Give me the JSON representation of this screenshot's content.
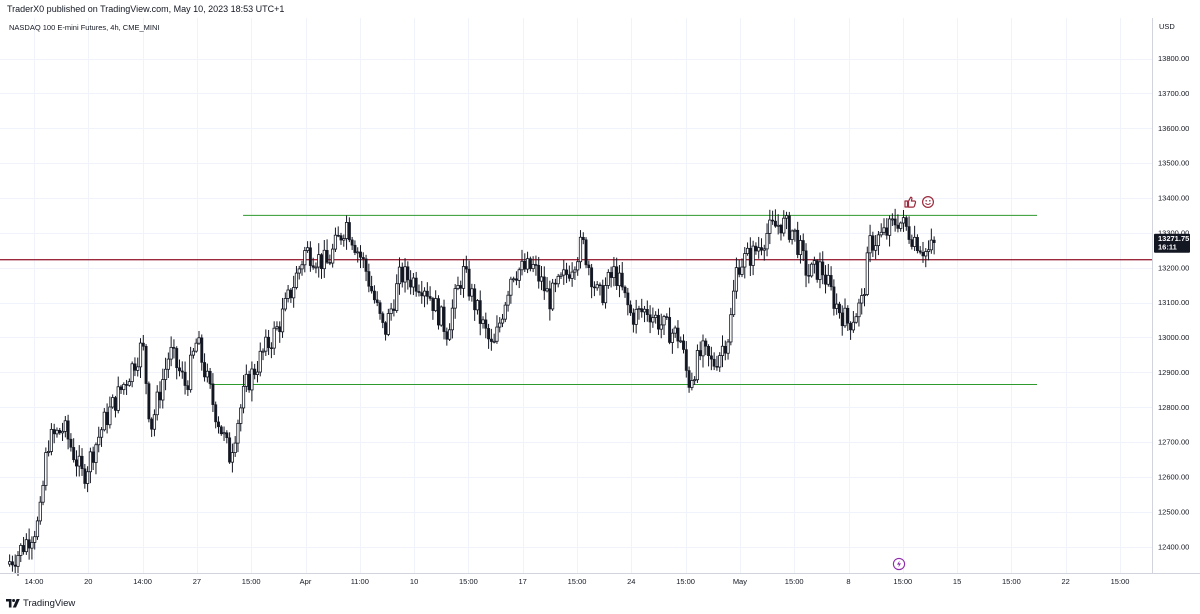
{
  "header": {
    "published": "TraderX0 published on TradingView.com, May 10, 2023 18:53 UTC+1"
  },
  "legend": {
    "symbol_line": "NASDAQ 100 E-mini Futures, 4h, CME_MINI"
  },
  "footer": {
    "brand": "TradingView"
  },
  "colors": {
    "background": "#ffffff",
    "candle": "#131722",
    "support_resistance": "#2e9a2e",
    "pivot_line": "#9c2a3c",
    "price_badge_bg": "#131722",
    "price_badge_text": "#ffffff",
    "grid": "#f0f3fa",
    "axis_border": "#d1d4dc",
    "icon_accent": "#9c2a3c",
    "alert_icon": "#8e2bab"
  },
  "icons": [
    "thumbs-up-icon",
    "smiley-icon",
    "lightning-icon",
    "tradingview-logo-icon"
  ],
  "chart_data": {
    "type": "candlestick",
    "title": "NASDAQ 100 E-mini Futures, 4h, CME_MINI",
    "price_axis_unit": "USD",
    "y_range": [
      12340,
      13880
    ],
    "y_ticks": [
      "13800.00",
      "13700.00",
      "13600.00",
      "13500.00",
      "13400.00",
      "13300.00",
      "13200.00",
      "13100.00",
      "13000.00",
      "12900.00",
      "12800.00",
      "12700.00",
      "12600.00",
      "12500.00",
      "12400.00"
    ],
    "y_tick_values": [
      13800,
      13700,
      13600,
      13500,
      13400,
      13300,
      13200,
      13100,
      13000,
      12900,
      12800,
      12700,
      12600,
      12500,
      12400
    ],
    "x_ticks": [
      "14:00",
      "20",
      "14:00",
      "27",
      "15:00",
      "Apr",
      "11:00",
      "10",
      "15:00",
      "17",
      "15:00",
      "24",
      "15:00",
      "May",
      "15:00",
      "8",
      "15:00",
      "15",
      "15:00",
      "22",
      "15:00"
    ],
    "x_tick_positions": [
      0.0,
      1.0,
      2.0,
      3.0,
      4.0,
      5.0,
      6.0,
      7.0,
      8.0,
      9.0,
      10.0,
      11.0,
      12.0,
      13.0,
      14.0,
      15.0,
      16.0,
      17.0,
      18.0,
      19.0,
      20.0
    ],
    "current_price": "13271.75",
    "countdown": "16:11",
    "current_price_value": 13271.75,
    "horizontal_lines": [
      {
        "name": "resistance",
        "price": 13350,
        "color": "#2e9a2e",
        "from": 3.85
      },
      {
        "name": "pivot",
        "price": 13223,
        "color": "#9c2a3c",
        "from": -0.5
      },
      {
        "name": "support",
        "price": 12865,
        "color": "#2e9a2e",
        "from": 3.25
      }
    ],
    "anchors": [
      {
        "t": -0.5,
        "p": 12350
      },
      {
        "t": -0.3,
        "p": 12380
      },
      {
        "t": 0.1,
        "p": 12470
      },
      {
        "t": 0.25,
        "p": 12700
      },
      {
        "t": 0.55,
        "p": 12740
      },
      {
        "t": 0.9,
        "p": 12600
      },
      {
        "t": 1.3,
        "p": 12760
      },
      {
        "t": 1.7,
        "p": 12880
      },
      {
        "t": 2.0,
        "p": 12980
      },
      {
        "t": 2.15,
        "p": 12740
      },
      {
        "t": 2.5,
        "p": 12960
      },
      {
        "t": 2.8,
        "p": 12860
      },
      {
        "t": 3.0,
        "p": 12990
      },
      {
        "t": 3.3,
        "p": 12810
      },
      {
        "t": 3.6,
        "p": 12660
      },
      {
        "t": 3.9,
        "p": 12860
      },
      {
        "t": 4.2,
        "p": 12950
      },
      {
        "t": 4.5,
        "p": 13030
      },
      {
        "t": 5.0,
        "p": 13250
      },
      {
        "t": 5.4,
        "p": 13210
      },
      {
        "t": 5.75,
        "p": 13330
      },
      {
        "t": 6.1,
        "p": 13200
      },
      {
        "t": 6.45,
        "p": 13010
      },
      {
        "t": 6.75,
        "p": 13180
      },
      {
        "t": 7.2,
        "p": 13150
      },
      {
        "t": 7.6,
        "p": 13020
      },
      {
        "t": 7.9,
        "p": 13190
      },
      {
        "t": 8.2,
        "p": 13060
      },
      {
        "t": 8.45,
        "p": 12960
      },
      {
        "t": 8.8,
        "p": 13190
      },
      {
        "t": 9.2,
        "p": 13200
      },
      {
        "t": 9.5,
        "p": 13110
      },
      {
        "t": 9.8,
        "p": 13180
      },
      {
        "t": 10.1,
        "p": 13270
      },
      {
        "t": 10.4,
        "p": 13110
      },
      {
        "t": 10.7,
        "p": 13190
      },
      {
        "t": 11.0,
        "p": 13060
      },
      {
        "t": 11.3,
        "p": 13080
      },
      {
        "t": 11.6,
        "p": 13030
      },
      {
        "t": 11.9,
        "p": 13000
      },
      {
        "t": 12.05,
        "p": 12870
      },
      {
        "t": 12.3,
        "p": 12960
      },
      {
        "t": 12.5,
        "p": 12920
      },
      {
        "t": 12.8,
        "p": 13010
      },
      {
        "t": 12.95,
        "p": 13210
      },
      {
        "t": 13.25,
        "p": 13240
      },
      {
        "t": 13.5,
        "p": 13300
      },
      {
        "t": 13.75,
        "p": 13330
      },
      {
        "t": 14.0,
        "p": 13300
      },
      {
        "t": 14.25,
        "p": 13180
      },
      {
        "t": 14.5,
        "p": 13200
      },
      {
        "t": 14.75,
        "p": 13100
      },
      {
        "t": 15.0,
        "p": 13040
      },
      {
        "t": 15.25,
        "p": 13100
      },
      {
        "t": 15.4,
        "p": 13270
      },
      {
        "t": 15.7,
        "p": 13300
      },
      {
        "t": 15.9,
        "p": 13340
      },
      {
        "t": 16.25,
        "p": 13280
      },
      {
        "t": 16.45,
        "p": 13240
      },
      {
        "t": 16.6,
        "p": 13272
      }
    ]
  }
}
